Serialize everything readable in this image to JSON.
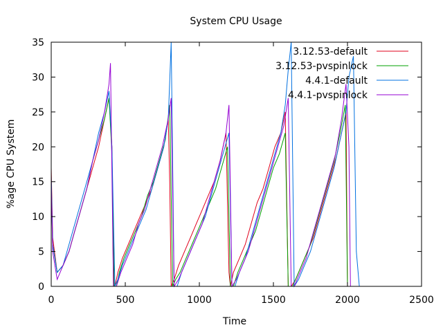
{
  "chart_data": {
    "type": "line",
    "title": "System CPU Usage",
    "xlabel": "Time",
    "ylabel": "%age CPU System",
    "xlim": [
      0,
      2500
    ],
    "ylim": [
      0,
      35
    ],
    "xticks": [
      0,
      500,
      1000,
      1500,
      2000,
      2500
    ],
    "yticks": [
      0,
      5,
      10,
      15,
      20,
      25,
      30,
      35
    ],
    "grid": false,
    "legend_position": "top-right",
    "series": [
      {
        "name": "3.12.53-default",
        "color": "#e0001b",
        "x": [
          0,
          10,
          40,
          80,
          120,
          160,
          200,
          240,
          280,
          320,
          360,
          390,
          410,
          420,
          430,
          450,
          480,
          520,
          560,
          600,
          640,
          680,
          720,
          760,
          790,
          800,
          810,
          830,
          860,
          900,
          940,
          980,
          1020,
          1060,
          1100,
          1140,
          1180,
          1200,
          1210,
          1230,
          1270,
          1310,
          1350,
          1390,
          1430,
          1470,
          1510,
          1550,
          1580,
          1600,
          1620,
          1650,
          1690,
          1730,
          1770,
          1810,
          1850,
          1890,
          1930,
          1960,
          1990,
          2000
        ],
        "y": [
          17,
          7,
          2,
          3,
          5,
          8,
          11,
          14,
          17,
          20,
          24,
          27,
          20,
          0,
          0,
          2,
          4,
          6,
          8,
          10,
          12,
          14,
          17,
          20,
          24,
          15,
          0,
          1,
          3,
          5,
          7,
          9,
          11,
          13,
          15,
          18,
          22,
          2,
          0,
          2,
          4,
          6,
          9,
          12,
          14,
          17,
          20,
          22,
          25,
          0,
          0,
          1,
          3,
          5,
          7,
          10,
          13,
          16,
          19,
          22,
          25,
          0
        ]
      },
      {
        "name": "3.12.53-pvspinlock",
        "color": "#00a000",
        "x": [
          0,
          10,
          40,
          80,
          120,
          160,
          200,
          240,
          280,
          320,
          360,
          390,
          410,
          425,
          440,
          460,
          490,
          530,
          570,
          610,
          650,
          690,
          730,
          770,
          800,
          820,
          840,
          870,
          910,
          950,
          990,
          1030,
          1070,
          1110,
          1150,
          1190,
          1210,
          1230,
          1260,
          1300,
          1340,
          1380,
          1420,
          1460,
          1500,
          1540,
          1580,
          1600,
          1630,
          1670,
          1710,
          1750,
          1790,
          1830,
          1870,
          1910,
          1950,
          1985,
          2000
        ],
        "y": [
          15,
          6,
          2,
          3,
          5,
          8,
          11,
          14,
          18,
          21,
          24,
          27,
          19,
          0,
          0,
          2,
          4,
          6,
          8,
          10,
          13,
          15,
          18,
          21,
          26,
          0,
          1,
          2,
          4,
          6,
          8,
          10,
          12,
          14,
          17,
          20,
          0,
          0,
          2,
          4,
          6,
          8,
          11,
          14,
          17,
          19,
          22,
          0,
          0,
          2,
          4,
          6,
          9,
          12,
          15,
          18,
          22,
          26,
          0
        ]
      },
      {
        "name": "4.4.1-default",
        "color": "#0070e0",
        "x": [
          0,
          10,
          40,
          80,
          120,
          160,
          200,
          240,
          280,
          320,
          360,
          390,
          410,
          430,
          450,
          480,
          520,
          560,
          600,
          640,
          680,
          720,
          760,
          790,
          810,
          830,
          850,
          880,
          920,
          960,
          1000,
          1040,
          1080,
          1120,
          1160,
          1200,
          1220,
          1240,
          1270,
          1310,
          1350,
          1390,
          1430,
          1470,
          1510,
          1550,
          1580,
          1600,
          1620,
          1640,
          1670,
          1710,
          1750,
          1790,
          1830,
          1870,
          1910,
          1950,
          1990,
          2010,
          2040,
          2060,
          2080
        ],
        "y": [
          16,
          6,
          2,
          3,
          6,
          9,
          12,
          15,
          18,
          22,
          25,
          28,
          20,
          0,
          1,
          3,
          5,
          7,
          9,
          11,
          14,
          17,
          20,
          24,
          35,
          0,
          0,
          2,
          4,
          6,
          8,
          10,
          13,
          16,
          19,
          22,
          0,
          0,
          2,
          4,
          7,
          10,
          13,
          16,
          19,
          22,
          26,
          31,
          35,
          0,
          1,
          3,
          5,
          8,
          11,
          14,
          17,
          21,
          25,
          30,
          33,
          5,
          0
        ]
      },
      {
        "name": "4.4.1-pvspinlock",
        "color": "#9500d3",
        "x": [
          0,
          10,
          40,
          80,
          120,
          160,
          200,
          240,
          280,
          320,
          360,
          390,
          400,
          420,
          440,
          470,
          510,
          550,
          590,
          630,
          670,
          710,
          750,
          790,
          810,
          830,
          860,
          900,
          940,
          980,
          1020,
          1060,
          1100,
          1140,
          1180,
          1200,
          1220,
          1250,
          1290,
          1330,
          1370,
          1410,
          1450,
          1490,
          1530,
          1570,
          1600,
          1620,
          1640,
          1680,
          1720,
          1760,
          1800,
          1840,
          1880,
          1920,
          1960,
          1990,
          2010,
          2020
        ],
        "y": [
          15,
          5,
          1,
          3,
          5,
          8,
          11,
          14,
          18,
          21,
          25,
          29,
          32,
          0,
          0,
          2,
          4,
          6,
          9,
          11,
          14,
          17,
          20,
          24,
          27,
          0,
          1,
          3,
          5,
          7,
          9,
          12,
          15,
          18,
          22,
          26,
          0,
          1,
          3,
          5,
          8,
          11,
          14,
          17,
          20,
          23,
          27,
          0,
          0,
          2,
          4,
          7,
          10,
          13,
          16,
          19,
          24,
          29,
          20,
          0
        ]
      }
    ]
  }
}
